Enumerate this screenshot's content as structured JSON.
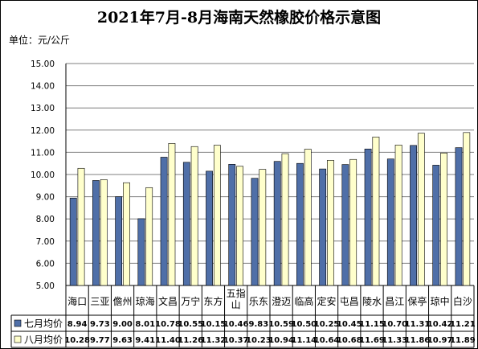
{
  "chart_data": {
    "type": "bar",
    "title": "2021年7月-8月海南天然橡胶价格示意图",
    "unit_label": "单位：元/公斤",
    "categories": [
      "海口",
      "三亚",
      "儋州",
      "琼海",
      "文昌",
      "万宁",
      "东方",
      "五指山",
      "乐东",
      "澄迈",
      "临高",
      "定安",
      "屯昌",
      "陵水",
      "昌江",
      "保亭",
      "琼中",
      "白沙"
    ],
    "series": [
      {
        "name": "七月均价",
        "color": "#4f6fa8",
        "values": [
          8.94,
          9.73,
          9.0,
          8.01,
          10.78,
          10.55,
          10.15,
          10.46,
          9.83,
          10.59,
          10.5,
          10.25,
          10.45,
          11.15,
          10.7,
          11.31,
          10.42,
          11.21
        ]
      },
      {
        "name": "八月均价",
        "color": "#ffffcc",
        "values": [
          10.28,
          9.77,
          9.63,
          9.41,
          11.4,
          11.26,
          11.32,
          10.37,
          10.23,
          10.94,
          11.14,
          10.64,
          10.68,
          11.69,
          11.33,
          11.86,
          10.97,
          11.89
        ]
      }
    ],
    "ylim": [
      5,
      15
    ],
    "yticks": [
      "5.00",
      "6.00",
      "7.00",
      "8.00",
      "9.00",
      "10.00",
      "11.00",
      "12.00",
      "13.00",
      "14.00",
      "15.00"
    ],
    "grid": true,
    "legend": "data-table"
  }
}
